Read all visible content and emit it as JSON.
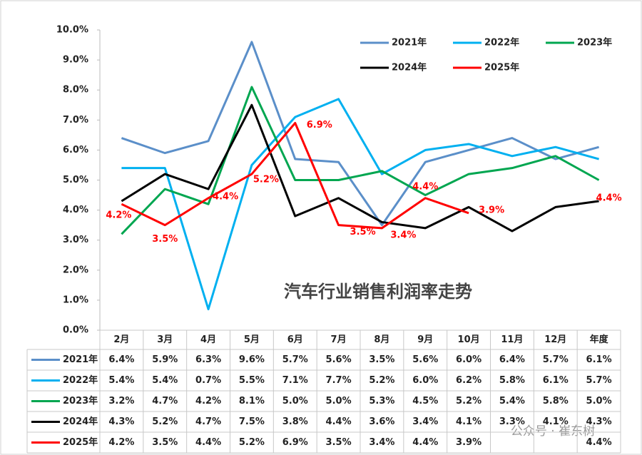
{
  "chart_data": {
    "type": "line",
    "title": "汽车行业销售利润率走势",
    "watermark": "公众号 · 崔东树",
    "categories": [
      "2月",
      "3月",
      "4月",
      "5月",
      "6月",
      "7月",
      "8月",
      "9月",
      "10月",
      "11月",
      "12月",
      "年度"
    ],
    "series": [
      {
        "name": "2021年",
        "color": "#5b8fc9",
        "values": [
          6.4,
          5.9,
          6.3,
          9.6,
          5.7,
          5.6,
          3.5,
          5.6,
          6.0,
          6.4,
          5.7,
          6.1
        ],
        "value_labels": [
          "6.4%",
          "5.9%",
          "6.3%",
          "9.6%",
          "5.7%",
          "5.6%",
          "3.5%",
          "5.6%",
          "6.0%",
          "6.4%",
          "5.7%",
          "6.1%"
        ]
      },
      {
        "name": "2022年",
        "color": "#00b0f0",
        "values": [
          5.4,
          5.4,
          0.7,
          5.5,
          7.1,
          7.7,
          5.2,
          6.0,
          6.2,
          5.8,
          6.1,
          5.7
        ],
        "value_labels": [
          "5.4%",
          "5.4%",
          "0.7%",
          "5.5%",
          "7.1%",
          "7.7%",
          "5.2%",
          "6.0%",
          "6.2%",
          "5.8%",
          "6.1%",
          "5.7%"
        ]
      },
      {
        "name": "2023年",
        "color": "#00a650",
        "values": [
          3.2,
          4.7,
          4.2,
          8.1,
          5.0,
          5.0,
          5.3,
          4.5,
          5.2,
          5.4,
          5.8,
          5.0
        ],
        "value_labels": [
          "3.2%",
          "4.7%",
          "4.2%",
          "8.1%",
          "5.0%",
          "5.0%",
          "5.3%",
          "4.5%",
          "5.2%",
          "5.4%",
          "5.8%",
          "5.0%"
        ]
      },
      {
        "name": "2024年",
        "color": "#000000",
        "values": [
          4.3,
          5.2,
          4.7,
          7.5,
          3.8,
          4.4,
          3.6,
          3.4,
          4.1,
          3.3,
          4.1,
          4.3
        ],
        "value_labels": [
          "4.3%",
          "5.2%",
          "4.7%",
          "7.5%",
          "3.8%",
          "4.4%",
          "3.6%",
          "3.4%",
          "4.1%",
          "3.3%",
          "4.1%",
          "4.3%"
        ]
      },
      {
        "name": "2025年",
        "color": "#ff0000",
        "values": [
          4.2,
          3.5,
          4.4,
          5.2,
          6.9,
          3.5,
          3.4,
          4.4,
          3.9,
          null,
          null,
          4.4
        ],
        "value_labels": [
          "4.2%",
          "3.5%",
          "4.4%",
          "5.2%",
          "6.9%",
          "3.5%",
          "3.4%",
          "4.4%",
          "3.9%",
          null,
          null,
          "4.4%"
        ],
        "data_labels": true
      }
    ],
    "ylim": [
      0,
      10
    ],
    "yticks": [
      {
        "value": 0,
        "label": "0.0%"
      },
      {
        "value": 1,
        "label": "1.0%"
      },
      {
        "value": 2,
        "label": "2.0%"
      },
      {
        "value": 3,
        "label": "3.0%"
      },
      {
        "value": 4,
        "label": "4.0%"
      },
      {
        "value": 5,
        "label": "5.0%"
      },
      {
        "value": 6,
        "label": "6.0%"
      },
      {
        "value": 7,
        "label": "7.0%"
      },
      {
        "value": 8,
        "label": "8.0%"
      },
      {
        "value": 9,
        "label": "9.0%"
      },
      {
        "value": 10,
        "label": "10.0%"
      }
    ],
    "grid": false,
    "legend": "top-right"
  }
}
